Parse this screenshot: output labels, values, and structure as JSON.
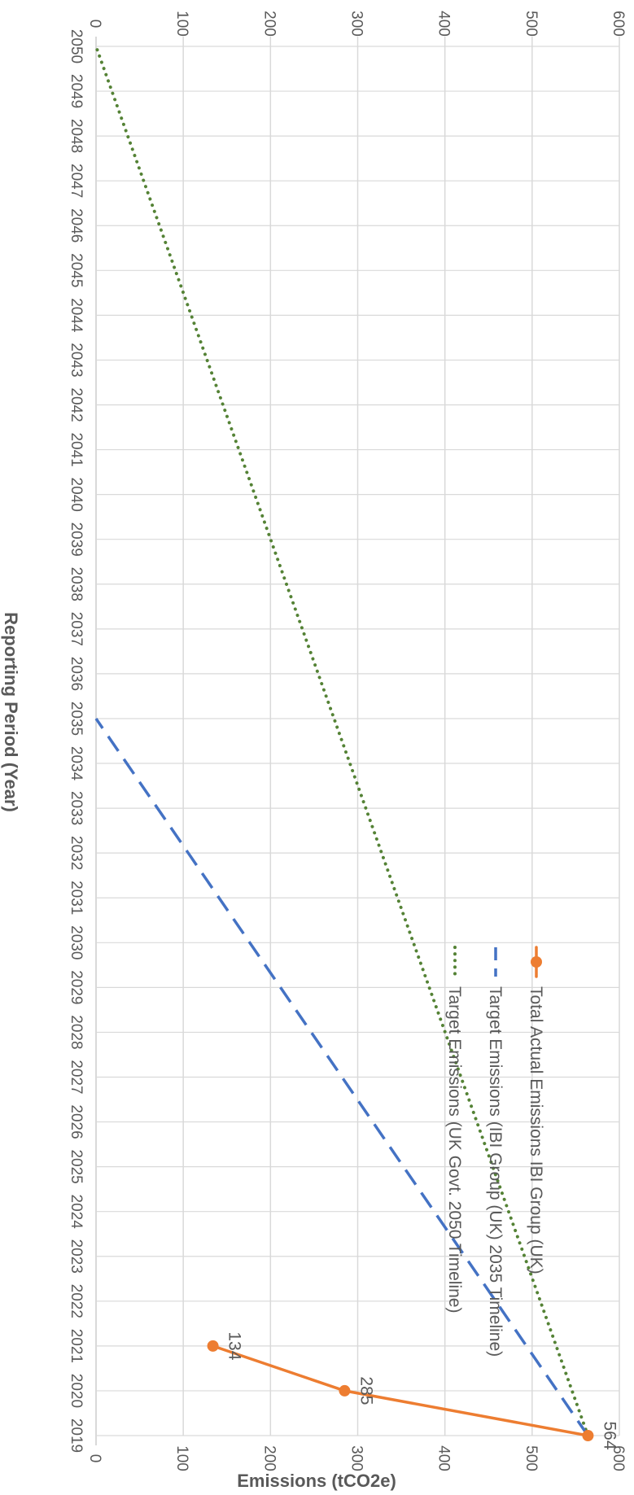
{
  "chart_data": {
    "type": "line",
    "orientation": "rotated 90° clockwise",
    "xlabel": "Reporting Period (Year)",
    "ylabel": "Emissions (tCO2e)",
    "x": [
      "2019",
      "2020",
      "2021",
      "2022",
      "2023",
      "2024",
      "2025",
      "2026",
      "2027",
      "2028",
      "2029",
      "2030",
      "2031",
      "2032",
      "2033",
      "2034",
      "2035",
      "2036",
      "2037",
      "2038",
      "2039",
      "2040",
      "2041",
      "2042",
      "2043",
      "2044",
      "2045",
      "2046",
      "2047",
      "2048",
      "2049",
      "2050"
    ],
    "ylim": [
      0,
      600
    ],
    "yticks": [
      "0",
      "100",
      "200",
      "300",
      "400",
      "500",
      "600"
    ],
    "grid": true,
    "legend_position": "top-right",
    "series": [
      {
        "name": "Target Emissions (UK Govt. 2050 Timeline)",
        "style": "dotted",
        "color": "#548235",
        "x": [
          "2019",
          "2050"
        ],
        "values": [
          564,
          0
        ]
      },
      {
        "name": "Target Emissions (IBI Group (UK) 2035 Timeline)",
        "style": "dashed",
        "color": "#4472C4",
        "x": [
          "2019",
          "2035"
        ],
        "values": [
          564,
          0
        ]
      },
      {
        "name": "Total Actual Emissions IBI Group (UK)",
        "style": "solid-markers",
        "color": "#ED7D31",
        "x": [
          "2019",
          "2020",
          "2021"
        ],
        "values": [
          564,
          285,
          134
        ],
        "data_labels": [
          "564",
          "285",
          "134"
        ]
      }
    ]
  }
}
